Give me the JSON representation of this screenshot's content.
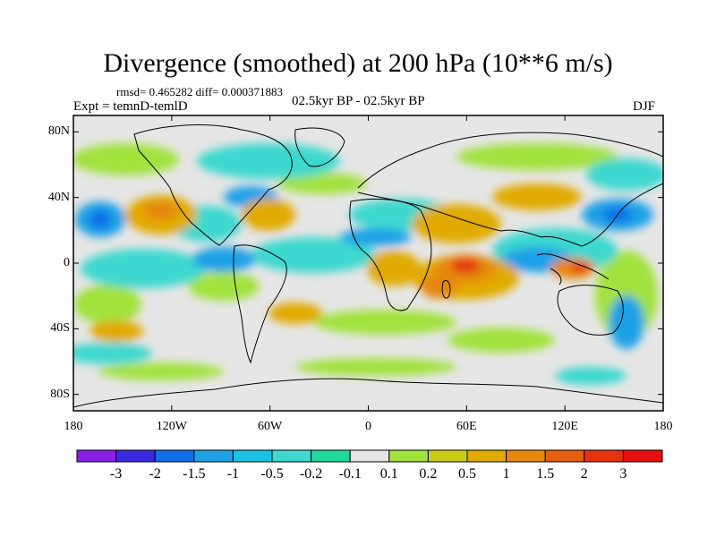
{
  "title": "Divergence (smoothed) at 200 hPa (10**6 m/s)",
  "stats": "rmsd= 0.465282 diff= 0.000371883",
  "experiment": "Expt = temnD-temlD",
  "period": "02.5kyr BP - 02.5kyr BP",
  "season": "DJF",
  "map": {
    "lat_ticks": [
      "80N",
      "40N",
      "0",
      "40S",
      "80S"
    ],
    "lon_ticks": [
      "180",
      "120W",
      "60W",
      "0",
      "60E",
      "120E",
      "180"
    ],
    "lat_values": [
      80,
      40,
      0,
      -40,
      -80
    ],
    "lon_values": [
      -180,
      -120,
      -60,
      0,
      60,
      120,
      180
    ],
    "lat_range": [
      -90,
      90
    ],
    "lon_range": [
      -180,
      180
    ]
  },
  "colorbar": {
    "labels": [
      "-3",
      "-2",
      "-1.5",
      "-1",
      "-0.5",
      "-0.2",
      "-0.1",
      "0.1",
      "0.2",
      "0.5",
      "1",
      "1.5",
      "2",
      "3"
    ],
    "colors": [
      "#8a1ee6",
      "#3a2ae0",
      "#0f6ee8",
      "#1ea0e6",
      "#18c2e0",
      "#3ed8cf",
      "#20d89a",
      "#e6e6e6",
      "#a2e23c",
      "#c8cd14",
      "#e1aa00",
      "#e6870a",
      "#e65f0f",
      "#e6320f",
      "#e60f0f"
    ]
  }
}
